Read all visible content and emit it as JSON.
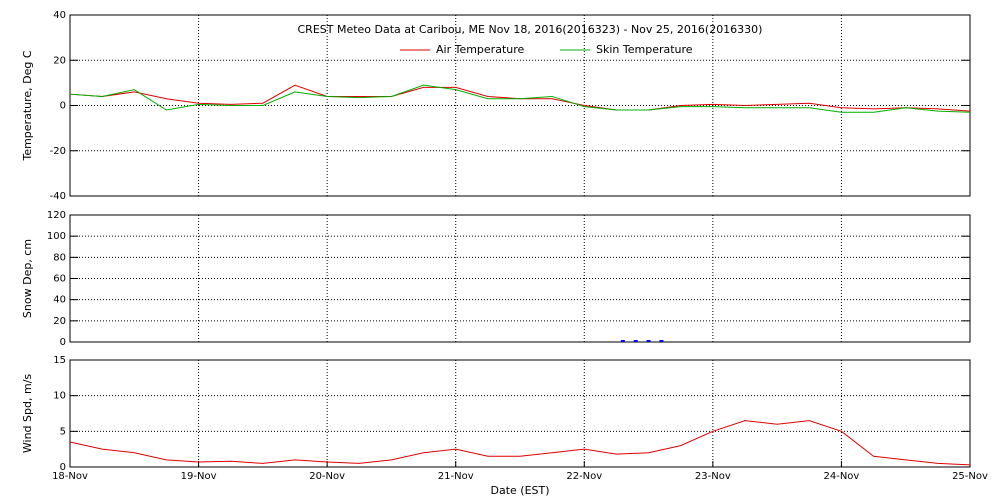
{
  "chart_data": [
    {
      "type": "line",
      "title": "CREST Meteo Data at Caribou, ME   Nov 18, 2016(2016323) - Nov 25, 2016(2016330)",
      "ylabel": "Temperature, Deg C",
      "ylim": [
        -40,
        40
      ],
      "yticks": [
        -40,
        -20,
        0,
        20,
        40
      ],
      "grid": true,
      "legend": "upper center",
      "x": [
        0,
        0.25,
        0.5,
        0.75,
        1,
        1.25,
        1.5,
        1.75,
        2,
        2.25,
        2.5,
        2.75,
        3,
        3.25,
        3.5,
        3.75,
        4,
        4.25,
        4.5,
        4.75,
        5,
        5.25,
        5.5,
        5.75,
        6,
        6.25,
        6.5,
        6.75,
        7
      ],
      "series": [
        {
          "name": "Air Temperature",
          "color": "#e00000",
          "values": [
            5,
            4,
            6,
            3,
            1,
            0.5,
            1,
            9,
            4,
            4,
            4,
            8,
            8,
            4,
            3,
            3,
            0,
            -2,
            -2,
            0,
            0.5,
            0,
            0.5,
            1,
            -1,
            -1.5,
            -1,
            -1.5,
            -2.5
          ]
        },
        {
          "name": "Skin Temperature",
          "color": "#00b000",
          "values": [
            5,
            4,
            7,
            -2,
            0.5,
            0,
            0,
            6,
            4,
            3.5,
            4,
            9,
            7,
            3,
            3,
            4,
            -0.5,
            -2,
            -2,
            -0.5,
            -0.5,
            -1,
            -1,
            -1,
            -3,
            -3,
            -1,
            -2.5,
            -3
          ]
        }
      ]
    },
    {
      "type": "scatter",
      "ylabel": "Snow Dep, cm",
      "ylim": [
        0,
        120
      ],
      "yticks": [
        0,
        20,
        40,
        60,
        80,
        100,
        120
      ],
      "grid": true,
      "x": [
        4.3,
        4.4,
        4.5,
        4.6
      ],
      "series": [
        {
          "color": "#0000ff",
          "values": [
            0,
            0,
            0,
            0
          ]
        }
      ]
    },
    {
      "type": "line",
      "ylabel": "Wind Spd, m/s",
      "xlabel": "Date (EST)",
      "ylim": [
        0,
        15
      ],
      "yticks": [
        0,
        5,
        10,
        15
      ],
      "grid": true,
      "xlim": [
        0,
        7
      ],
      "xticks": [
        {
          "value": 0,
          "label": "18-Nov"
        },
        {
          "value": 1,
          "label": "19-Nov"
        },
        {
          "value": 2,
          "label": "20-Nov"
        },
        {
          "value": 3,
          "label": "21-Nov"
        },
        {
          "value": 4,
          "label": "22-Nov"
        },
        {
          "value": 5,
          "label": "23-Nov"
        },
        {
          "value": 6,
          "label": "24-Nov"
        },
        {
          "value": 7,
          "label": "25-Nov"
        }
      ],
      "x": [
        0,
        0.25,
        0.5,
        0.75,
        1,
        1.25,
        1.5,
        1.75,
        2,
        2.25,
        2.5,
        2.75,
        3,
        3.25,
        3.5,
        3.75,
        4,
        4.25,
        4.5,
        4.75,
        5,
        5.25,
        5.5,
        5.75,
        6,
        6.25,
        6.5,
        6.75,
        7
      ],
      "series": [
        {
          "color": "#e00000",
          "values": [
            3.5,
            2.5,
            2,
            1,
            0.7,
            0.8,
            0.5,
            1,
            0.7,
            0.5,
            1,
            2,
            2.5,
            1.5,
            1.5,
            2,
            2.5,
            1.8,
            2,
            3,
            5,
            6.5,
            6,
            6.5,
            5,
            1.5,
            1,
            0.5,
            0.3
          ]
        }
      ]
    }
  ]
}
